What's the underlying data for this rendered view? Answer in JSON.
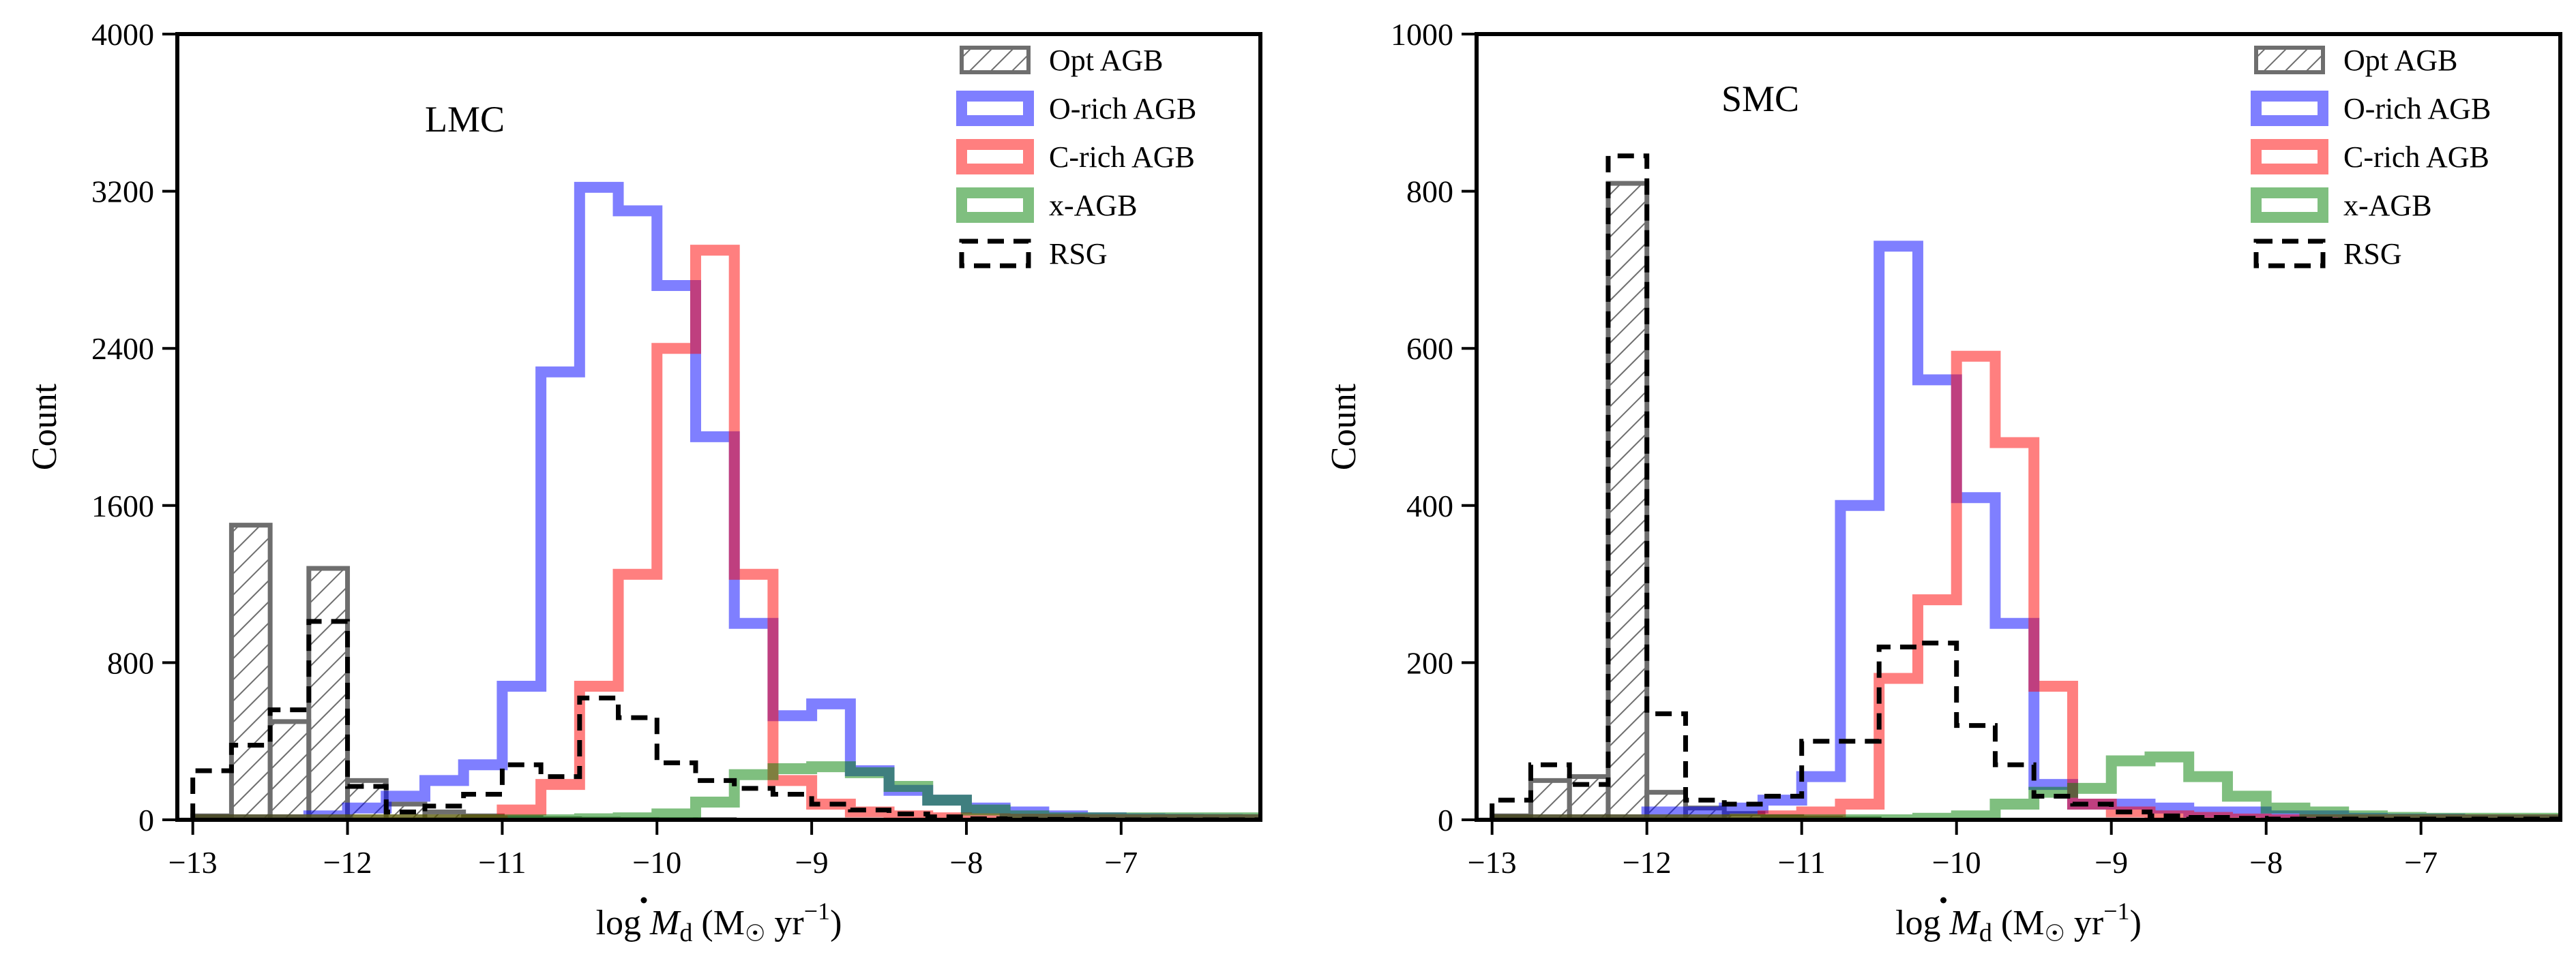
{
  "chart_data": [
    {
      "type": "histogram",
      "panel_label": "LMC",
      "ylabel": "Count",
      "xlabel_parts": [
        "log",
        "M",
        "d",
        "(M",
        "yr",
        "−1",
        ")"
      ],
      "xlim": [
        -13.1,
        -6.1
      ],
      "ylim": [
        0,
        4000
      ],
      "xticks": [
        -13,
        -12,
        -11,
        -10,
        -9,
        -8,
        -7
      ],
      "xtick_labels": [
        "−13",
        "−12",
        "−11",
        "−10",
        "−9",
        "−8",
        "−7"
      ],
      "yticks": [
        0,
        800,
        1600,
        2400,
        3200,
        4000
      ],
      "ytick_labels": [
        "0",
        "800",
        "1600",
        "2400",
        "3200",
        "4000"
      ],
      "bin_edges": [
        -13.0,
        -12.75,
        -12.5,
        -12.25,
        -12.0,
        -11.75,
        -11.5,
        -11.25,
        -11.0,
        -10.75,
        -10.5,
        -10.25,
        -10.0,
        -9.75,
        -9.5,
        -9.25,
        -9.0,
        -8.75,
        -8.5,
        -8.25,
        -8.0,
        -7.75,
        -7.5,
        -7.25,
        -7.0,
        -6.75,
        -6.5,
        -6.25,
        -6.0
      ],
      "legend": {
        "position": "top-right",
        "entries": [
          "Opt AGB",
          "O-rich AGB",
          "C-rich AGB",
          "x-AGB",
          "RSG"
        ]
      },
      "series": [
        {
          "name": "Opt AGB",
          "style": "hatch",
          "color": "#6e6e6e",
          "counts": [
            20,
            1500,
            500,
            1280,
            200,
            80,
            40,
            20,
            10,
            5,
            3,
            2,
            1,
            1,
            0,
            0,
            0,
            0,
            0,
            0,
            0,
            0,
            0,
            0,
            0,
            0,
            0,
            0
          ]
        },
        {
          "name": "O-rich AGB",
          "style": "step",
          "color": "#0000ff",
          "counts": [
            0,
            0,
            0,
            20,
            60,
            120,
            200,
            280,
            680,
            2280,
            3220,
            3100,
            2720,
            1950,
            1000,
            530,
            590,
            250,
            150,
            100,
            60,
            40,
            20,
            10,
            5,
            3,
            2,
            1
          ]
        },
        {
          "name": "C-rich AGB",
          "style": "step",
          "color": "#ff0000",
          "counts": [
            0,
            0,
            0,
            0,
            0,
            0,
            0,
            0,
            50,
            180,
            680,
            1250,
            2400,
            2900,
            1250,
            200,
            80,
            40,
            20,
            10,
            5,
            3,
            2,
            1,
            0,
            0,
            0,
            0
          ]
        },
        {
          "name": "x-AGB",
          "style": "step",
          "color": "#008000",
          "counts": [
            0,
            0,
            0,
            0,
            0,
            0,
            0,
            0,
            0,
            0,
            5,
            10,
            30,
            90,
            230,
            260,
            270,
            240,
            170,
            100,
            50,
            20,
            10,
            10,
            10,
            10,
            10,
            10
          ]
        },
        {
          "name": "RSG",
          "style": "dashed",
          "color": "#000000",
          "counts": [
            250,
            380,
            560,
            1010,
            170,
            40,
            70,
            130,
            280,
            220,
            620,
            520,
            290,
            200,
            160,
            130,
            80,
            50,
            30,
            15,
            5,
            3,
            2,
            1,
            0,
            0,
            0,
            0
          ]
        }
      ]
    },
    {
      "type": "histogram",
      "panel_label": "SMC",
      "ylabel": "Count",
      "xlabel_parts": [
        "log",
        "M",
        "d",
        "(M",
        "yr",
        "−1",
        ")"
      ],
      "xlim": [
        -13.1,
        -6.1
      ],
      "ylim": [
        0,
        1000
      ],
      "xticks": [
        -13,
        -12,
        -11,
        -10,
        -9,
        -8,
        -7
      ],
      "xtick_labels": [
        "−13",
        "−12",
        "−11",
        "−10",
        "−9",
        "−8",
        "−7"
      ],
      "yticks": [
        0,
        200,
        400,
        600,
        800,
        1000
      ],
      "ytick_labels": [
        "0",
        "200",
        "400",
        "600",
        "800",
        "1000"
      ],
      "bin_edges": [
        -13.0,
        -12.75,
        -12.5,
        -12.25,
        -12.0,
        -11.75,
        -11.5,
        -11.25,
        -11.0,
        -10.75,
        -10.5,
        -10.25,
        -10.0,
        -9.75,
        -9.5,
        -9.25,
        -9.0,
        -8.75,
        -8.5,
        -8.25,
        -8.0,
        -7.75,
        -7.5,
        -7.25,
        -7.0,
        -6.75,
        -6.5,
        -6.25,
        -6.0
      ],
      "legend": {
        "position": "top-right",
        "entries": [
          "Opt AGB",
          "O-rich AGB",
          "C-rich AGB",
          "x-AGB",
          "RSG"
        ]
      },
      "series": [
        {
          "name": "Opt AGB",
          "style": "hatch",
          "color": "#6e6e6e",
          "counts": [
            5,
            50,
            55,
            810,
            35,
            15,
            8,
            4,
            2,
            1,
            0,
            0,
            0,
            0,
            0,
            0,
            0,
            0,
            0,
            0,
            0,
            0,
            0,
            0,
            0,
            0,
            0,
            0
          ]
        },
        {
          "name": "O-rich AGB",
          "style": "step",
          "color": "#0000ff",
          "counts": [
            0,
            0,
            0,
            0,
            10,
            10,
            15,
            25,
            55,
            400,
            730,
            560,
            410,
            250,
            45,
            20,
            20,
            15,
            10,
            10,
            5,
            5,
            2,
            1,
            1,
            0,
            0,
            0
          ]
        },
        {
          "name": "C-rich AGB",
          "style": "step",
          "color": "#ff0000",
          "counts": [
            0,
            0,
            0,
            0,
            0,
            0,
            0,
            5,
            10,
            20,
            180,
            280,
            590,
            480,
            170,
            20,
            10,
            5,
            3,
            1,
            0,
            0,
            0,
            0,
            0,
            0,
            0,
            0
          ]
        },
        {
          "name": "x-AGB",
          "style": "step",
          "color": "#008000",
          "counts": [
            0,
            0,
            0,
            0,
            0,
            0,
            0,
            0,
            0,
            0,
            0,
            2,
            5,
            20,
            35,
            40,
            75,
            80,
            55,
            30,
            15,
            10,
            5,
            3,
            2,
            2,
            2,
            2
          ]
        },
        {
          "name": "RSG",
          "style": "dashed",
          "color": "#000000",
          "counts": [
            25,
            70,
            45,
            845,
            135,
            25,
            20,
            30,
            100,
            100,
            220,
            225,
            120,
            70,
            30,
            20,
            10,
            5,
            3,
            2,
            1,
            1,
            1,
            1,
            1,
            1,
            1,
            1
          ]
        }
      ]
    }
  ]
}
